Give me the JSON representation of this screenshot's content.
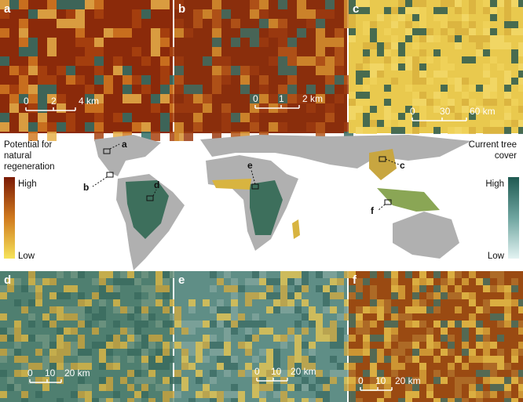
{
  "panels": [
    {
      "letter": "a",
      "scale": [
        "0",
        "2",
        "4 km"
      ]
    },
    {
      "letter": "b",
      "scale": [
        "0",
        "1",
        "2 km"
      ]
    },
    {
      "letter": "c",
      "scale": [
        "0",
        "30",
        "60 km"
      ]
    },
    {
      "letter": "d",
      "scale": [
        "0",
        "10",
        "20 km"
      ]
    },
    {
      "letter": "e",
      "scale": [
        "0",
        "10",
        "20 km"
      ]
    },
    {
      "letter": "f",
      "scale": [
        "0",
        "10",
        "20 km"
      ]
    }
  ],
  "map": {
    "callouts": [
      "a",
      "b",
      "d",
      "e",
      "c",
      "f"
    ]
  },
  "legend_left": {
    "title": "Potential for natural regeneration",
    "high": "High",
    "low": "Low"
  },
  "legend_right": {
    "title": "Current tree cover",
    "high": "High",
    "low": "Low"
  }
}
